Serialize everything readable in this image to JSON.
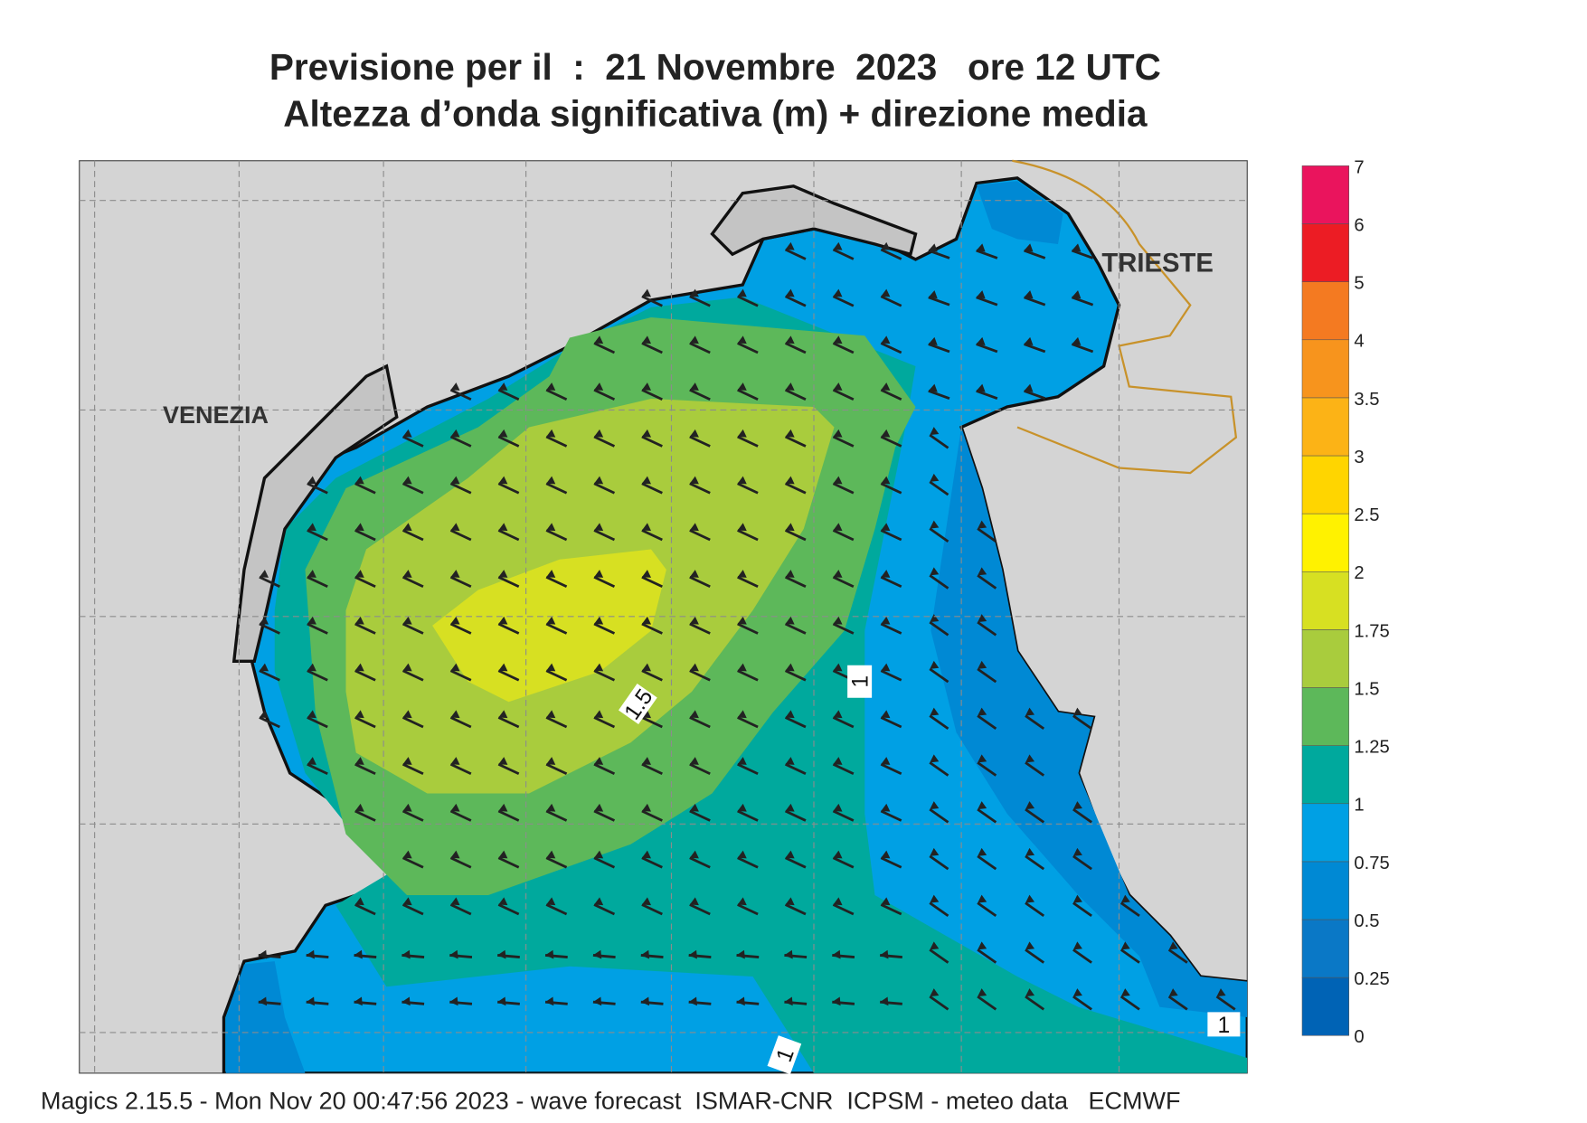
{
  "header": {
    "title_line1": "Previsione per il  :  21 Novembre  2023   ore 12 UTC",
    "title_line2": "Altezza d’onda significativa (m) + direzione media"
  },
  "map": {
    "places": [
      "VENEZIA",
      "TRIESTE"
    ],
    "contour_labels": [
      1.5,
      1,
      1,
      1
    ]
  },
  "legend": {
    "levels": [
      0,
      0.25,
      0.5,
      0.75,
      1,
      1.25,
      1.5,
      1.75,
      2,
      2.5,
      3,
      3.5,
      4,
      5,
      6,
      7
    ],
    "colors": [
      "#0063b5",
      "#0a78c6",
      "#0089d4",
      "#00a0e4",
      "#00a99d",
      "#5db85a",
      "#a9cc3d",
      "#d7e022",
      "#fff200",
      "#ffd500",
      "#fcb316",
      "#f7941d",
      "#f47a21",
      "#ec1c24",
      "#ea145d"
    ]
  },
  "footer": "Magics 2.15.5 - Mon Nov 20 00:47:56 2023 - wave forecast  ISMAR-CNR  ICPSM - meteo data   ECMWF"
}
